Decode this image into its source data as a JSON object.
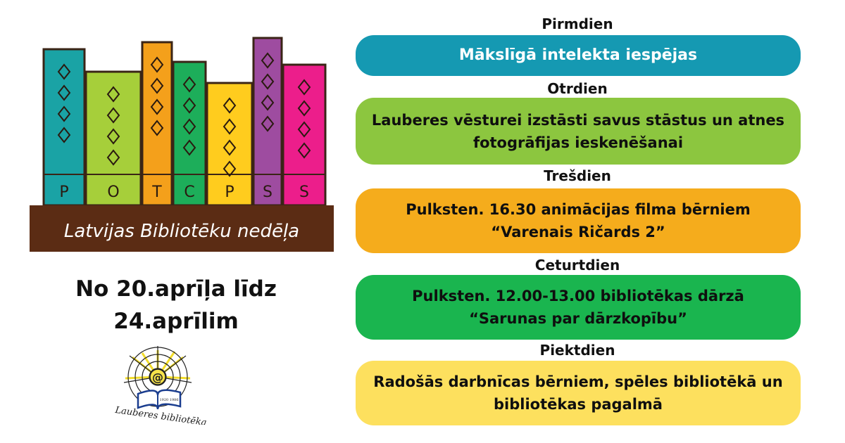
{
  "logo": {
    "spine_letters": [
      "P",
      "O",
      "T",
      "C",
      "P",
      "S",
      "S"
    ],
    "caption": "Latvijas Bibliotēku nedēļa",
    "colors": [
      "#1aa3a5",
      "#a6cf3a",
      "#f4a01b",
      "#1dae5a",
      "#ffcc1e",
      "#9e4ca0",
      "#ec1e8b"
    ],
    "shelf_color": "#5b2c14"
  },
  "dates": {
    "line1": "No 20.aprīļa līdz",
    "line2": "24.aprīlim"
  },
  "library_logo": {
    "caption": "Lauberes bibliotēka",
    "book_text": "1920 1986",
    "at_symbol": "@"
  },
  "schedule": [
    {
      "day": "Pirmdien",
      "text": "Mākslīgā intelekta iespējas",
      "color": "#1599b2"
    },
    {
      "day": "Otrdien",
      "text": "Lauberes vēsturei izstāsti savus stāstus un atnes fotogrāfijas ieskenēšanai",
      "color": "#8cc63f"
    },
    {
      "day": "Trešdien",
      "text": "Pulksten. 16.30 animācijas filma bērniem “Varenais Ričards 2”",
      "color": "#f5ac1c"
    },
    {
      "day": "Ceturtdien",
      "text": "Pulksten. 12.00-13.00 bibliotēkas dārzā “Sarunas par dārzkopību”",
      "color": "#1ab54f"
    },
    {
      "day": "Piektdien",
      "text": "Radošās darbnīcas bērniem, spēles bibliotēkā un bibliotēkas pagalmā",
      "color": "#fde05e"
    }
  ]
}
